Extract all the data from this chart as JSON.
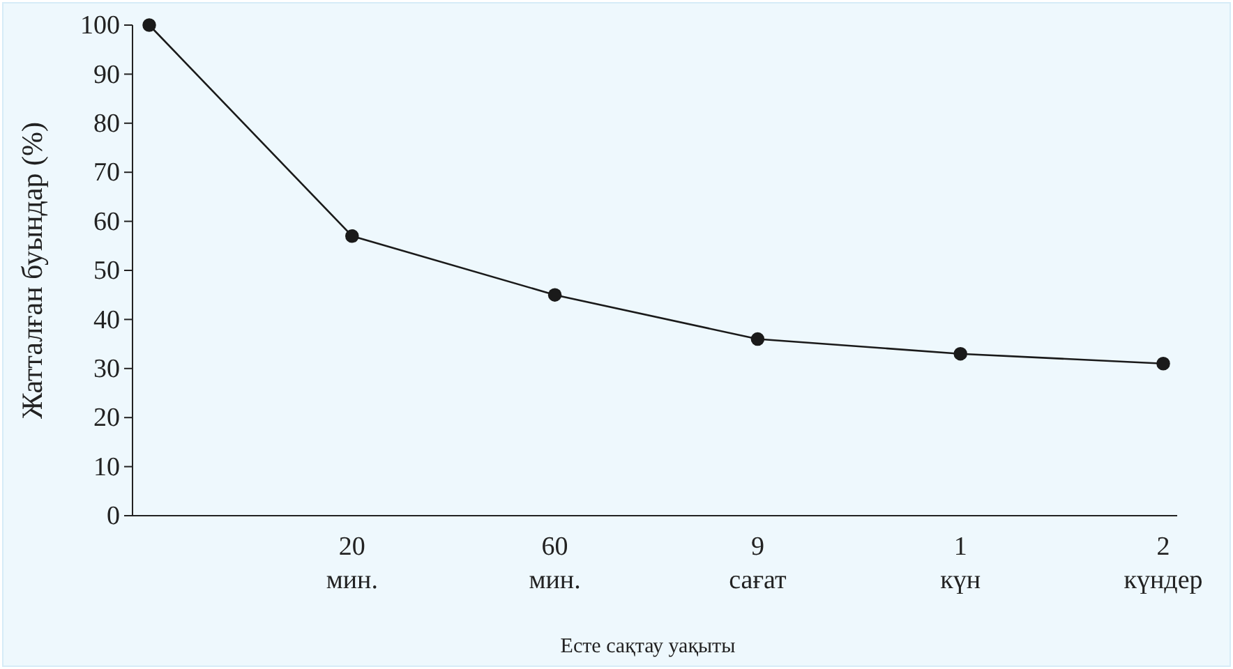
{
  "chart_data": {
    "type": "line",
    "xlabel": "Есте сақтау уақыты",
    "ylabel": "Жатталған буындар (%)",
    "categories": [
      null,
      "20\nмин.",
      "60\nмин.",
      "9\nсағат",
      "1\nкүн",
      "2\nкүндер"
    ],
    "series": [
      {
        "color": "#1a1a1a",
        "values": [
          100,
          57,
          45,
          36,
          33,
          31
        ]
      }
    ],
    "ylim": [
      0,
      100
    ],
    "yticks": [
      0,
      10,
      20,
      30,
      40,
      50,
      60,
      70,
      80,
      90,
      100
    ],
    "marker": "circle",
    "line_style": "solid",
    "grid": false
  }
}
